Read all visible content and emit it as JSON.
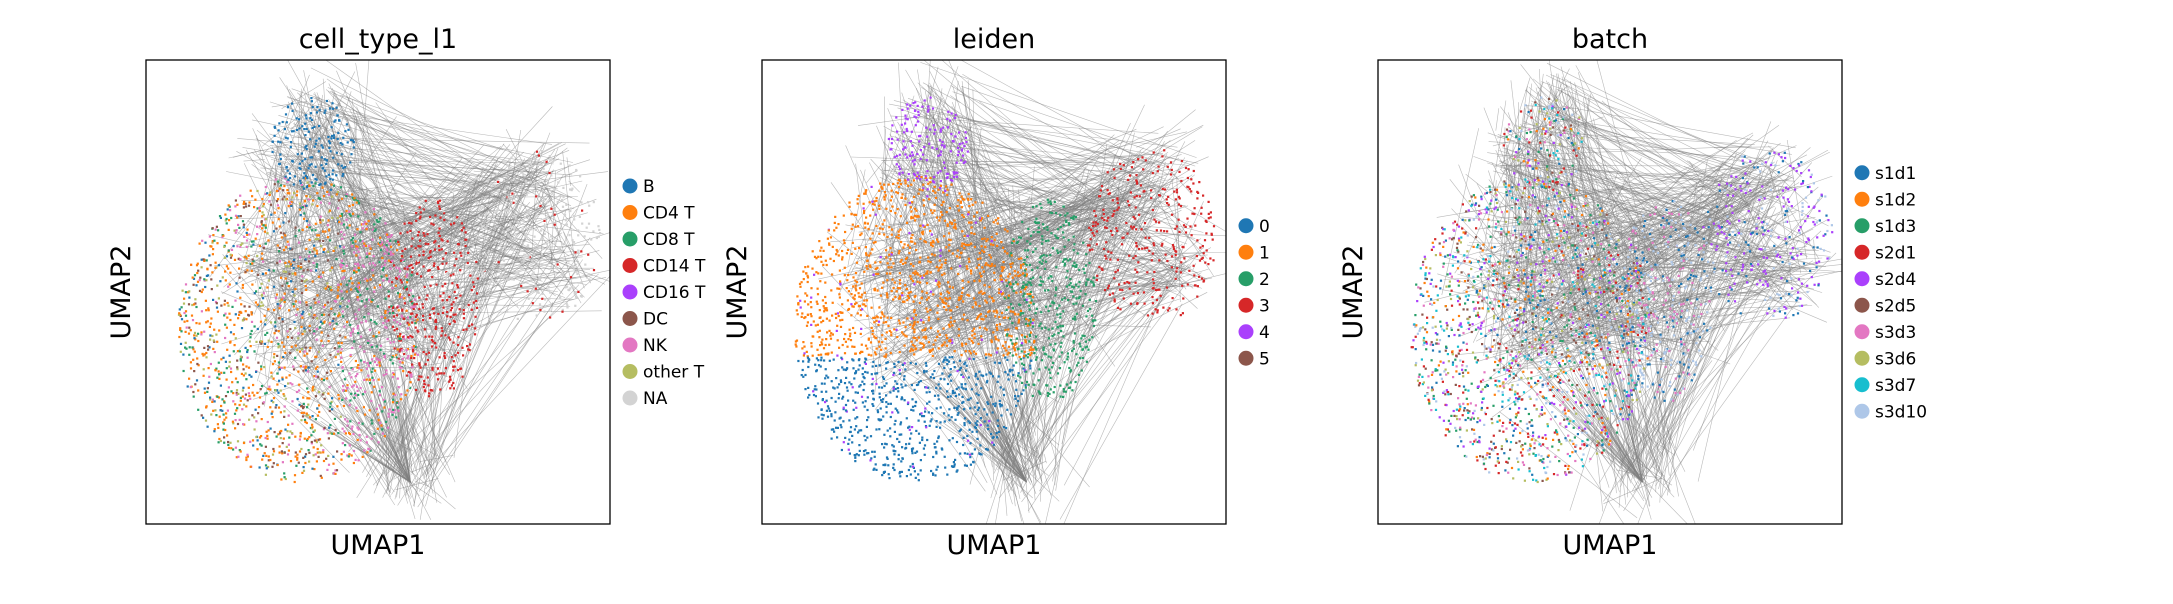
{
  "chart_data": [
    {
      "type": "scatter",
      "title": "cell_type_l1",
      "xlabel": "UMAP1",
      "ylabel": "UMAP2",
      "legend_position": "right",
      "legend": [
        {
          "label": "B",
          "color": "#1f77b4"
        },
        {
          "label": "CD4 T",
          "color": "#ff7f0e"
        },
        {
          "label": "CD8 T",
          "color": "#279e68"
        },
        {
          "label": "CD14 T",
          "color": "#d62728"
        },
        {
          "label": "CD16 T",
          "color": "#aa40fc"
        },
        {
          "label": "DC",
          "color": "#8c564b"
        },
        {
          "label": "NK",
          "color": "#e377c2"
        },
        {
          "label": "other T",
          "color": "#b5bd61"
        },
        {
          "label": "NA",
          "color": "#d3d3d3"
        }
      ]
    },
    {
      "type": "scatter",
      "title": "leiden",
      "xlabel": "UMAP1",
      "ylabel": "UMAP2",
      "legend_position": "right",
      "legend": [
        {
          "label": "0",
          "color": "#1f77b4"
        },
        {
          "label": "1",
          "color": "#ff7f0e"
        },
        {
          "label": "2",
          "color": "#279e68"
        },
        {
          "label": "3",
          "color": "#d62728"
        },
        {
          "label": "4",
          "color": "#aa40fc"
        },
        {
          "label": "5",
          "color": "#8c564b"
        }
      ]
    },
    {
      "type": "scatter",
      "title": "batch",
      "xlabel": "UMAP1",
      "ylabel": "UMAP2",
      "legend_position": "right",
      "legend": [
        {
          "label": "s1d1",
          "color": "#1f77b4"
        },
        {
          "label": "s1d2",
          "color": "#ff7f0e"
        },
        {
          "label": "s1d3",
          "color": "#279e68"
        },
        {
          "label": "s2d1",
          "color": "#d62728"
        },
        {
          "label": "s2d4",
          "color": "#aa40fc"
        },
        {
          "label": "s2d5",
          "color": "#8c564b"
        },
        {
          "label": "s3d3",
          "color": "#e377c2"
        },
        {
          "label": "s3d6",
          "color": "#b5bd61"
        },
        {
          "label": "s3d7",
          "color": "#17becf"
        },
        {
          "label": "s3d10",
          "color": "#aec7e8"
        }
      ]
    }
  ]
}
